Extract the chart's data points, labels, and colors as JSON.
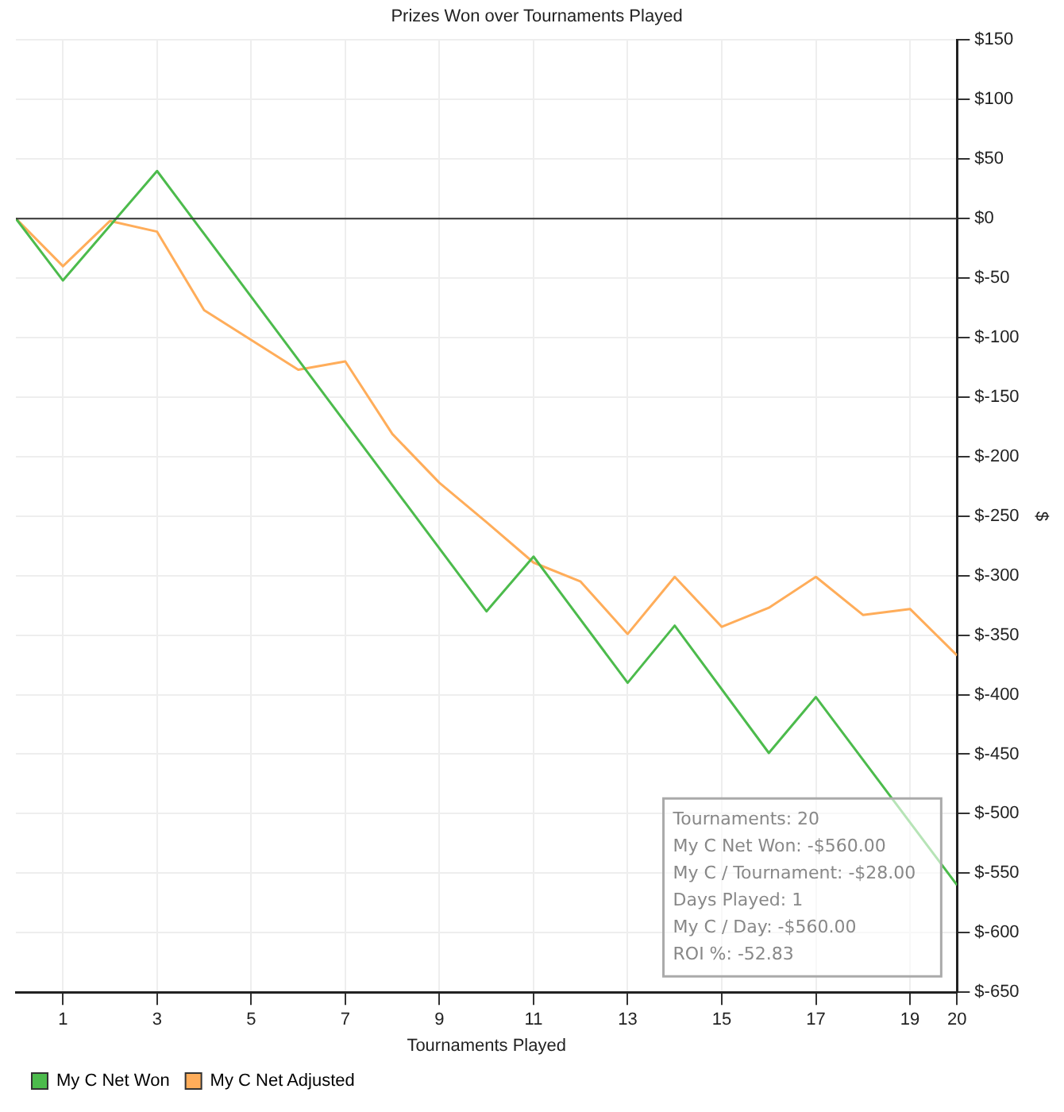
{
  "chart_data": {
    "type": "line",
    "title": "Prizes Won over Tournaments Played",
    "xlabel": "Tournaments Played",
    "ylabel": "$",
    "series": [
      {
        "name": "My C Net Won",
        "color": "#4cbb4c",
        "x": [
          0,
          1,
          3,
          10,
          11,
          13,
          14,
          16,
          17,
          20
        ],
        "values": [
          0,
          -52,
          40,
          -330,
          -284,
          -390,
          -342,
          -449,
          -402,
          -560
        ]
      },
      {
        "name": "My C Net Adjusted",
        "color": "#ffad5a",
        "x": [
          0,
          1,
          2,
          3,
          4,
          5,
          6,
          7,
          8,
          9,
          10,
          11,
          12,
          13,
          14,
          15,
          16,
          17,
          18,
          19,
          20
        ],
        "values": [
          0,
          -40,
          -2,
          -11,
          -77,
          -102,
          -127,
          -120,
          -181,
          -222,
          -255,
          -289,
          -305,
          -349,
          -301,
          -343,
          -327,
          -301,
          -333,
          -328,
          -367
        ]
      }
    ],
    "xlim": [
      0,
      20
    ],
    "xticks": [
      1,
      3,
      5,
      7,
      9,
      11,
      13,
      15,
      17,
      19,
      20
    ],
    "ylim": [
      -650,
      150
    ],
    "yticks": [
      {
        "value": 150,
        "label": "$150"
      },
      {
        "value": 100,
        "label": "$100"
      },
      {
        "value": 50,
        "label": "$50"
      },
      {
        "value": 0,
        "label": "$0"
      },
      {
        "value": -50,
        "label": "$-50"
      },
      {
        "value": -100,
        "label": "$-100"
      },
      {
        "value": -150,
        "label": "$-150"
      },
      {
        "value": -200,
        "label": "$-200"
      },
      {
        "value": -250,
        "label": "$-250"
      },
      {
        "value": -300,
        "label": "$-300"
      },
      {
        "value": -350,
        "label": "$-350"
      },
      {
        "value": -400,
        "label": "$-400"
      },
      {
        "value": -450,
        "label": "$-450"
      },
      {
        "value": -500,
        "label": "$-500"
      },
      {
        "value": -550,
        "label": "$-550"
      },
      {
        "value": -600,
        "label": "$-600"
      },
      {
        "value": -650,
        "label": "$-650"
      }
    ],
    "ref_lines": [
      {
        "axis": "y",
        "value": 0,
        "color": "#333333"
      }
    ],
    "annotations": [
      "Tournaments: 20",
      "My C Net Won: -$560.00",
      "My C / Tournament: -$28.00",
      "Days Played: 1",
      "My C / Day: -$560.00",
      "ROI %: -52.83"
    ],
    "grid": true,
    "legend": "bottom left",
    "marker": "none",
    "line_style": "solid"
  }
}
